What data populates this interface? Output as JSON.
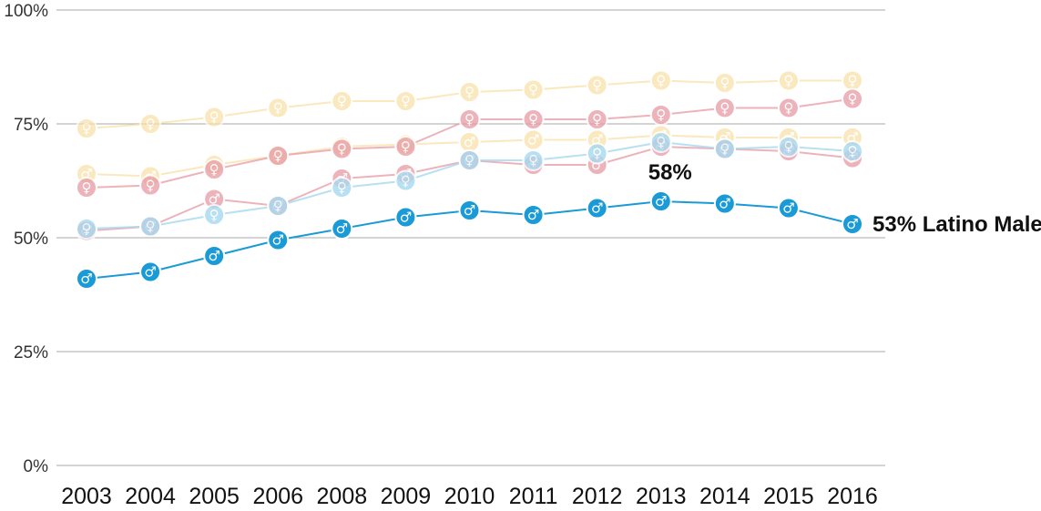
{
  "chart_data": {
    "type": "line",
    "title": "",
    "xlabel": "",
    "ylabel": "",
    "ylim": [
      0,
      100
    ],
    "yticks": [
      0,
      25,
      50,
      75,
      100
    ],
    "ytick_labels": [
      "0%",
      "25%",
      "50%",
      "75%",
      "100%"
    ],
    "categories": [
      "2003",
      "2004",
      "2005",
      "2006",
      "2008",
      "2009",
      "2010",
      "2011",
      "2012",
      "2013",
      "2014",
      "2015",
      "2016"
    ],
    "series": [
      {
        "name": "Yellow female",
        "color": "#f9dfa3",
        "opacity": 0.7,
        "symbol": "♀",
        "values": [
          74,
          75,
          76.5,
          78.5,
          80,
          80,
          82,
          82.5,
          83.5,
          84.5,
          84,
          84.5,
          84.5
        ]
      },
      {
        "name": "Yellow male",
        "color": "#f9dfa3",
        "opacity": 0.7,
        "symbol": "♂",
        "values": [
          64,
          63.5,
          66,
          68,
          70,
          70.5,
          71,
          71.5,
          71.5,
          72.5,
          72,
          72,
          72
        ]
      },
      {
        "name": "Red female",
        "color": "#e89aa4",
        "opacity": 0.75,
        "symbol": "♀",
        "values": [
          61,
          61.5,
          65,
          68,
          69.5,
          70,
          76,
          76,
          76,
          77,
          78.5,
          78.5,
          80.5
        ]
      },
      {
        "name": "Red male",
        "color": "#e89aa4",
        "opacity": 0.75,
        "symbol": "♂",
        "values": [
          51.5,
          52.5,
          58.5,
          57,
          63,
          64,
          67,
          66,
          66,
          70,
          69.5,
          69,
          67.5
        ]
      },
      {
        "name": "Light blue female",
        "color": "#a6d9f0",
        "opacity": 0.8,
        "symbol": "♀",
        "values": [
          52,
          52.5,
          55,
          57,
          61,
          62.5,
          67,
          67,
          68.5,
          71,
          69.5,
          70,
          69
        ]
      },
      {
        "name": "Latino Male",
        "color": "#1a9ad6",
        "opacity": 1,
        "symbol": "♂",
        "values": [
          41,
          42.5,
          46,
          49.5,
          52,
          54.5,
          56,
          55,
          56.5,
          58,
          57.5,
          56.5,
          53
        ]
      }
    ],
    "annotations": [
      {
        "text": "58%",
        "category": "2013",
        "value": 58
      },
      {
        "text": "53% Latino Male",
        "category": "2016",
        "value": 53
      }
    ]
  }
}
